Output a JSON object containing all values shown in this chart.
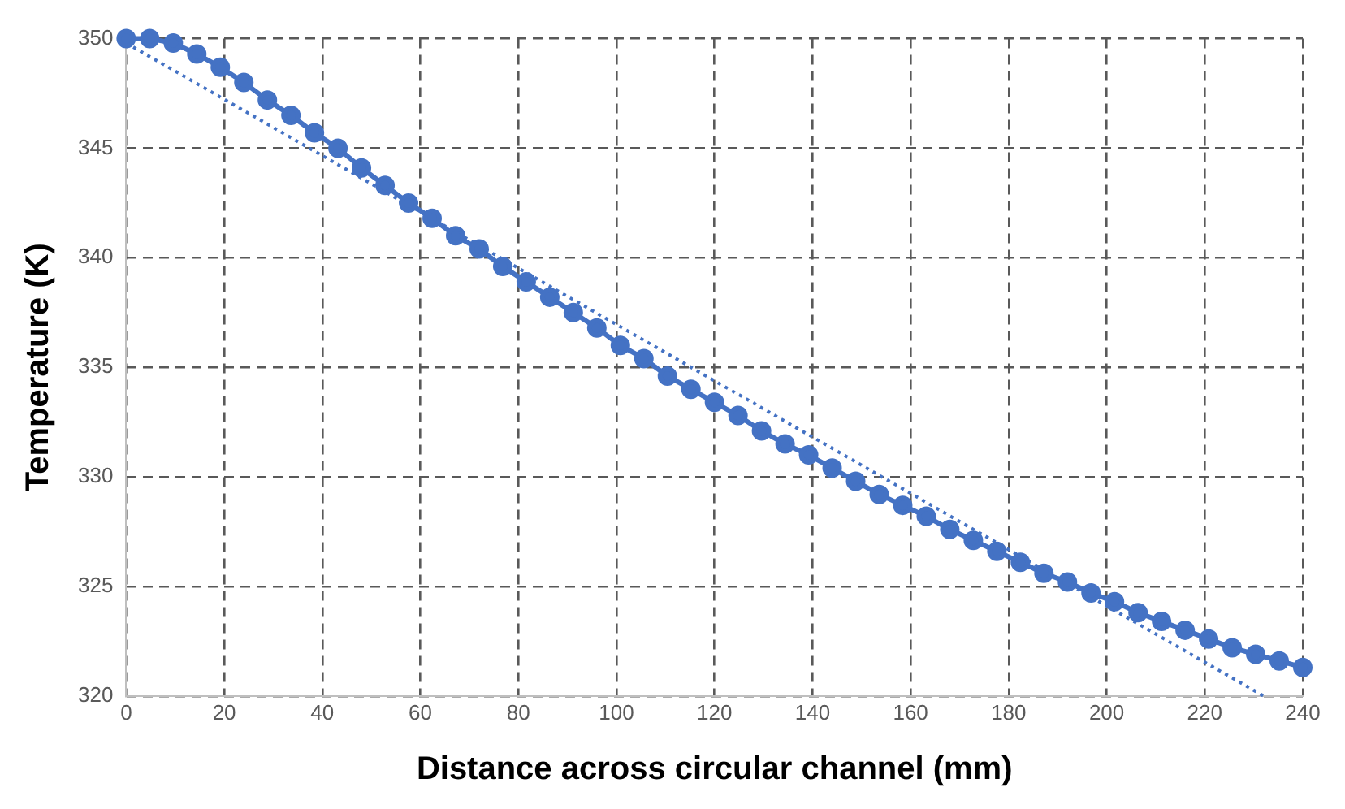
{
  "chart_data": {
    "type": "line",
    "xlabel": "Distance across circular channel (mm)",
    "ylabel": "Temperature (K)",
    "x": [
      0,
      4.8,
      9.6,
      14.4,
      19.2,
      24,
      28.8,
      33.6,
      38.4,
      43.2,
      48,
      52.8,
      57.6,
      62.4,
      67.2,
      72,
      76.8,
      81.6,
      86.4,
      91.2,
      96,
      100.8,
      105.6,
      110.4,
      115.2,
      120,
      124.8,
      129.6,
      134.4,
      139.2,
      144,
      148.8,
      153.6,
      158.4,
      163.2,
      168,
      172.8,
      177.6,
      182.4,
      187.2,
      192,
      196.8,
      201.6,
      206.4,
      211.2,
      216,
      220.8,
      225.6,
      230.4,
      235.2,
      240
    ],
    "series": [
      {
        "color": "#4472c4",
        "marker": "circle",
        "line_style": "solid",
        "values": [
          350,
          350,
          349.8,
          349.3,
          348.7,
          348,
          347.2,
          346.5,
          345.7,
          345,
          344.1,
          343.3,
          342.5,
          341.8,
          341,
          340.4,
          339.6,
          338.9,
          338.2,
          337.5,
          336.8,
          336,
          335.4,
          334.6,
          334,
          333.4,
          332.8,
          332.1,
          331.5,
          331,
          330.4,
          329.8,
          329.2,
          328.7,
          328.2,
          327.6,
          327.1,
          326.6,
          326.1,
          325.6,
          325.2,
          324.7,
          324.3,
          323.8,
          323.4,
          323,
          322.6,
          322.2,
          321.9,
          321.6,
          321.3
        ]
      },
      {
        "color": "#4472c4",
        "marker": "none",
        "line_style": "dotted",
        "x": [
          0,
          232
        ],
        "values": [
          349.8,
          320
        ]
      }
    ],
    "xlim": [
      0,
      240
    ],
    "xticks": [
      0,
      20,
      40,
      60,
      80,
      100,
      120,
      140,
      160,
      180,
      200,
      220,
      240
    ],
    "ylim": [
      320,
      350
    ],
    "yticks": [
      320,
      325,
      330,
      335,
      340,
      345,
      350
    ],
    "grid": true,
    "legend": false
  }
}
